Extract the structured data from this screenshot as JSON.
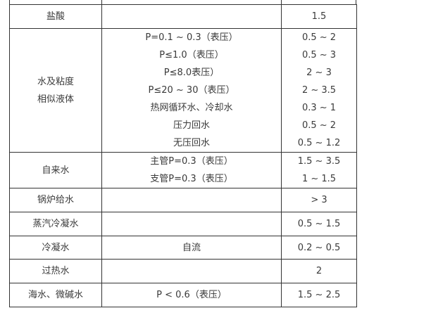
{
  "table": {
    "rows": [
      {
        "medium": [
          "盐酸"
        ],
        "condition": [],
        "velocity": [
          "1.5"
        ]
      },
      {
        "medium": [
          "水及粘度",
          "相似液体"
        ],
        "condition": [
          "P=0.1 ~ 0.3（表压）",
          "P≤1.0（表压）",
          "P≤8.0表压）",
          "P≤20 ~ 30（表压）",
          "热网循环水、冷却水",
          "压力回水",
          "无压回水"
        ],
        "velocity": [
          "0.5 ~ 2",
          "0.5 ~ 3",
          "2 ~ 3",
          "2 ~ 3.5",
          "0.3 ~ 1",
          "0.5 ~ 2",
          "0.5 ~ 1.2"
        ]
      },
      {
        "medium": [
          "自来水"
        ],
        "condition": [
          "主管P=0.3（表压）",
          "支管P=0.3（表压）"
        ],
        "velocity": [
          "1.5 ~ 3.5",
          "1 ~ 1.5"
        ]
      },
      {
        "medium": [
          "锅炉给水"
        ],
        "condition": [],
        "velocity": [
          "> 3"
        ]
      },
      {
        "medium": [
          "蒸汽冷凝水"
        ],
        "condition": [],
        "velocity": [
          "0.5 ~ 1.5"
        ]
      },
      {
        "medium": [
          "冷凝水"
        ],
        "condition": [
          "自流"
        ],
        "velocity": [
          "0.2 ~ 0.5"
        ]
      },
      {
        "medium": [
          "过热水"
        ],
        "condition": [],
        "velocity": [
          "2"
        ]
      },
      {
        "medium": [
          "海水、微碱水"
        ],
        "condition": [
          "P < 0.6（表压）"
        ],
        "velocity": [
          "1.5 ~ 2.5"
        ]
      }
    ]
  }
}
